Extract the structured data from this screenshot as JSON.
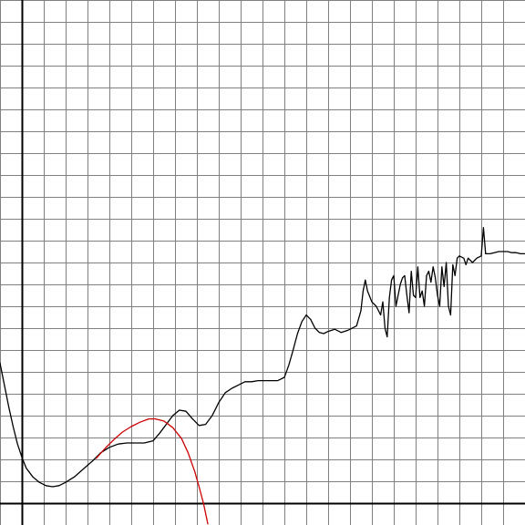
{
  "chart_data": {
    "type": "line",
    "title": "",
    "xlabel": "",
    "ylabel": "",
    "grid": true,
    "legend": "none",
    "xlim": [
      -1,
      23
    ],
    "ylim": [
      -1,
      23
    ],
    "grid_step": 1,
    "axes_cross": [
      0,
      0
    ],
    "colors": {
      "grid": "#808080",
      "axis": "#000000",
      "series1": "#000000",
      "series2": "#cc0000"
    },
    "series": [
      {
        "name": "",
        "color": "#000000",
        "points": [
          [
            -1.0,
            6.4
          ],
          [
            -0.8,
            5.4
          ],
          [
            -0.6,
            4.4
          ],
          [
            -0.4,
            3.5
          ],
          [
            -0.2,
            2.7
          ],
          [
            0.0,
            2.1
          ],
          [
            0.2,
            1.6
          ],
          [
            0.5,
            1.2
          ],
          [
            0.8,
            0.95
          ],
          [
            1.1,
            0.8
          ],
          [
            1.4,
            0.75
          ],
          [
            1.7,
            0.8
          ],
          [
            2.0,
            0.95
          ],
          [
            2.4,
            1.2
          ],
          [
            2.8,
            1.55
          ],
          [
            3.2,
            1.9
          ],
          [
            3.6,
            2.3
          ],
          [
            4.0,
            2.55
          ],
          [
            4.4,
            2.7
          ],
          [
            4.8,
            2.75
          ],
          [
            5.2,
            2.75
          ],
          [
            5.6,
            2.75
          ],
          [
            6.0,
            2.85
          ],
          [
            6.3,
            3.2
          ],
          [
            6.6,
            3.6
          ],
          [
            6.9,
            4.0
          ],
          [
            7.2,
            4.25
          ],
          [
            7.5,
            4.2
          ],
          [
            7.8,
            3.85
          ],
          [
            8.1,
            3.55
          ],
          [
            8.4,
            3.6
          ],
          [
            8.7,
            4.0
          ],
          [
            9.0,
            4.6
          ],
          [
            9.3,
            5.05
          ],
          [
            9.6,
            5.25
          ],
          [
            9.9,
            5.4
          ],
          [
            10.2,
            5.55
          ],
          [
            10.5,
            5.55
          ],
          [
            10.8,
            5.6
          ],
          [
            11.1,
            5.6
          ],
          [
            11.4,
            5.6
          ],
          [
            11.7,
            5.6
          ],
          [
            12.0,
            5.75
          ],
          [
            12.2,
            6.3
          ],
          [
            12.4,
            7.0
          ],
          [
            12.6,
            7.75
          ],
          [
            12.8,
            8.3
          ],
          [
            13.0,
            8.6
          ],
          [
            13.2,
            8.4
          ],
          [
            13.4,
            8.0
          ],
          [
            13.6,
            7.8
          ],
          [
            13.8,
            7.75
          ],
          [
            14.0,
            7.85
          ],
          [
            14.3,
            7.95
          ],
          [
            14.6,
            7.8
          ],
          [
            14.9,
            7.9
          ],
          [
            15.3,
            8.1
          ],
          [
            15.5,
            8.8
          ],
          [
            15.6,
            9.7
          ],
          [
            15.7,
            10.2
          ],
          [
            15.8,
            9.7
          ],
          [
            16.0,
            9.2
          ],
          [
            16.2,
            9.0
          ],
          [
            16.4,
            8.6
          ],
          [
            16.5,
            9.2
          ],
          [
            16.6,
            8.0
          ],
          [
            16.7,
            7.6
          ],
          [
            16.8,
            9.4
          ],
          [
            16.9,
            10.2
          ],
          [
            17.0,
            10.4
          ],
          [
            17.1,
            9.0
          ],
          [
            17.2,
            9.5
          ],
          [
            17.3,
            10.0
          ],
          [
            17.4,
            10.3
          ],
          [
            17.5,
            10.4
          ],
          [
            17.6,
            9.5
          ],
          [
            17.7,
            8.7
          ],
          [
            17.8,
            10.6
          ],
          [
            17.9,
            9.5
          ],
          [
            18.0,
            9.4
          ],
          [
            18.1,
            10.8
          ],
          [
            18.2,
            9.4
          ],
          [
            18.3,
            9.7
          ],
          [
            18.4,
            9.0
          ],
          [
            18.5,
            10.4
          ],
          [
            18.6,
            10.6
          ],
          [
            18.7,
            10.1
          ],
          [
            18.8,
            10.8
          ],
          [
            18.9,
            10.3
          ],
          [
            19.0,
            9.5
          ],
          [
            19.1,
            9.0
          ],
          [
            19.2,
            10.8
          ],
          [
            19.3,
            9.9
          ],
          [
            19.4,
            11.0
          ],
          [
            19.5,
            9.0
          ],
          [
            19.6,
            8.6
          ],
          [
            19.7,
            10.9
          ],
          [
            19.8,
            10.4
          ],
          [
            19.9,
            11.2
          ],
          [
            20.0,
            11.3
          ],
          [
            20.2,
            11.2
          ],
          [
            20.3,
            10.9
          ],
          [
            20.4,
            11.2
          ],
          [
            20.6,
            11.0
          ],
          [
            20.8,
            11.2
          ],
          [
            21.0,
            11.3
          ],
          [
            21.1,
            12.6
          ],
          [
            21.2,
            11.4
          ],
          [
            21.4,
            11.4
          ],
          [
            21.6,
            11.45
          ],
          [
            21.8,
            11.5
          ],
          [
            22.0,
            11.5
          ],
          [
            22.2,
            11.5
          ],
          [
            22.4,
            11.45
          ],
          [
            22.6,
            11.45
          ],
          [
            22.8,
            11.4
          ],
          [
            23.0,
            11.4
          ]
        ]
      },
      {
        "name": "",
        "color": "#cc0000",
        "points": [
          [
            3.4,
            2.05
          ],
          [
            3.8,
            2.5
          ],
          [
            4.2,
            2.9
          ],
          [
            4.6,
            3.25
          ],
          [
            5.0,
            3.5
          ],
          [
            5.4,
            3.7
          ],
          [
            5.8,
            3.85
          ],
          [
            6.1,
            3.85
          ],
          [
            6.5,
            3.75
          ],
          [
            6.9,
            3.45
          ],
          [
            7.3,
            2.95
          ],
          [
            7.6,
            2.3
          ],
          [
            7.9,
            1.45
          ],
          [
            8.1,
            0.75
          ],
          [
            8.3,
            0.0
          ],
          [
            8.5,
            -0.95
          ]
        ]
      }
    ]
  }
}
